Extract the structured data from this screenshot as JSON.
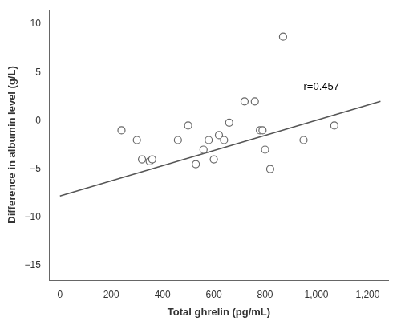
{
  "chart_data": {
    "type": "scatter",
    "x_label": "Total ghrelin (pg/mL)",
    "y_label": "Difference in albumin level (g/L)",
    "series": [
      {
        "type": "scatter",
        "marker": "circle",
        "color": "#666666",
        "x": [
          240,
          300,
          320,
          350,
          360,
          460,
          500,
          530,
          560,
          580,
          600,
          620,
          640,
          660,
          720,
          760,
          780,
          790,
          800,
          820,
          870,
          950,
          1070
        ],
        "values": [
          -1,
          -2,
          -4,
          -4.2,
          -4,
          -2,
          -0.5,
          -4.5,
          -3,
          -2,
          -4,
          -1.5,
          -2,
          -0.2,
          2,
          2,
          -1,
          -1,
          -3,
          -5,
          8.7,
          -2,
          -0.5
        ]
      },
      {
        "type": "line",
        "line_style": "solid",
        "color": "#555555",
        "x": [
          0,
          1250
        ],
        "values": [
          -7.8,
          2.0125
        ]
      }
    ],
    "annotations": [
      {
        "text": "r=0.457",
        "x": 950,
        "y": 3.5
      }
    ],
    "xlim": [
      -40,
      1280
    ],
    "ylim": [
      -16.5,
      11.5
    ],
    "xticks": [
      0,
      200,
      400,
      600,
      800,
      {
        "value": 1000,
        "label": "1,000"
      },
      {
        "value": 1200,
        "label": "1,200"
      }
    ],
    "yticks": [
      {
        "value": -15,
        "label": "−15"
      },
      {
        "value": -10,
        "label": "−10"
      },
      {
        "value": -5,
        "label": "−5"
      },
      0,
      5,
      10
    ],
    "grid": false
  }
}
